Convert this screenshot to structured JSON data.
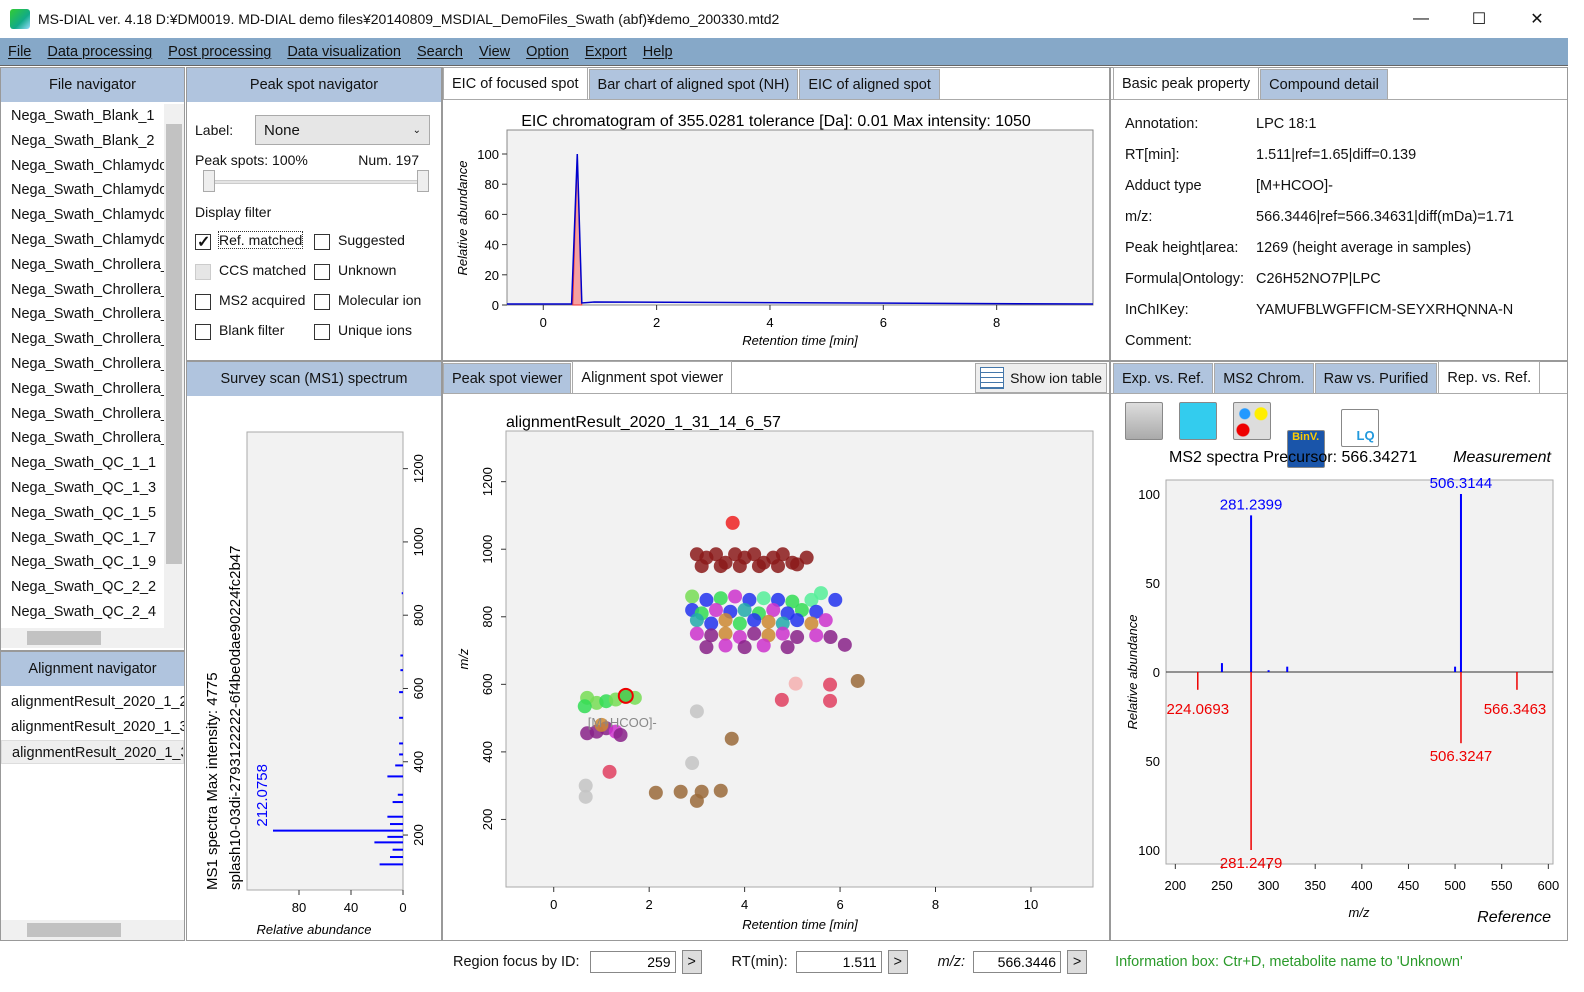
{
  "window": {
    "title": "MS-DIAL ver. 4.18 D:¥DM0019. MD-DIAL demo files¥20140809_MSDIAL_DemoFiles_Swath (abf)¥demo_200330.mtd2",
    "minimize": "—",
    "maximize": "☐",
    "close": "✕"
  },
  "menu": [
    "File",
    "Data processing",
    "Post processing",
    "Data visualization",
    "Search",
    "View",
    "Option",
    "Export",
    "Help"
  ],
  "file_nav": {
    "title": "File navigator",
    "files": [
      "Nega_Swath_Blank_1",
      "Nega_Swath_Blank_2",
      "Nega_Swath_Chlamydo",
      "Nega_Swath_Chlamydo",
      "Nega_Swath_Chlamydo",
      "Nega_Swath_Chlamydo",
      "Nega_Swath_Chrollera_",
      "Nega_Swath_Chrollera_",
      "Nega_Swath_Chrollera_",
      "Nega_Swath_Chrollera_",
      "Nega_Swath_Chrollera_",
      "Nega_Swath_Chrollera_",
      "Nega_Swath_Chrollera_",
      "Nega_Swath_Chrollera_",
      "Nega_Swath_QC_1_1",
      "Nega_Swath_QC_1_3",
      "Nega_Swath_QC_1_5",
      "Nega_Swath_QC_1_7",
      "Nega_Swath_QC_1_9",
      "Nega_Swath_QC_2_2",
      "Nega_Swath_QC_2_4"
    ]
  },
  "align_nav": {
    "title": "Alignment navigator",
    "items": [
      "alignmentResult_2020_1_2",
      "alignmentResult_2020_1_3",
      "alignmentResult_2020_1_3"
    ]
  },
  "peak_nav": {
    "title": "Peak spot navigator",
    "label_caption": "Label:",
    "label_value": "None",
    "peak_spots": "Peak spots: 100%",
    "num": "Num. 197",
    "display_filter": "Display filter",
    "filters": [
      {
        "label": "Ref. matched",
        "checked": true
      },
      {
        "label": "Suggested",
        "checked": false
      },
      {
        "label": "CCS matched",
        "checked": false,
        "disabled": true
      },
      {
        "label": "Unknown",
        "checked": false
      },
      {
        "label": "MS2 acquired",
        "checked": false
      },
      {
        "label": "Molecular ion",
        "checked": false
      },
      {
        "label": "Blank filter",
        "checked": false
      },
      {
        "label": "Unique ions",
        "checked": false
      }
    ]
  },
  "ms1": {
    "title": "Survey scan (MS1) spectrum",
    "line1": "MS1 spectra Max intensity: 4775",
    "line2": "splash10-03di-2793122222-6f4be0dae90224fc2b47",
    "xlabel": "Relative abundance",
    "xticks": [
      80,
      40,
      0
    ],
    "yticks": [
      200,
      400,
      600,
      800,
      1000,
      1200
    ],
    "peak_label": "212.0758",
    "peaks": [
      [
        120,
        18
      ],
      [
        140,
        10
      ],
      [
        160,
        8
      ],
      [
        180,
        22
      ],
      [
        195,
        12
      ],
      [
        212.0758,
        100
      ],
      [
        230,
        10
      ],
      [
        250,
        12
      ],
      [
        290,
        8
      ],
      [
        310,
        4
      ],
      [
        360,
        12
      ],
      [
        390,
        6
      ],
      [
        420,
        3
      ],
      [
        450,
        3
      ],
      [
        520,
        3
      ],
      [
        590,
        3
      ],
      [
        650,
        2
      ],
      [
        690,
        2
      ],
      [
        860,
        1
      ]
    ]
  },
  "eic_tabs": [
    "EIC of focused spot",
    "Bar chart of aligned spot (NH)",
    "EIC of aligned spot"
  ],
  "eic": {
    "title": "EIC chromatogram of 355.0281 tolerance [Da]: 0.01  Max intensity: 1050",
    "xlabel": "Retention time [min]",
    "ylabel": "Relative abundance",
    "xticks": [
      0,
      2,
      4,
      6,
      8
    ],
    "yticks": [
      0,
      20,
      40,
      60,
      80,
      100
    ],
    "xlim": [
      -0.64,
      9.7
    ],
    "peak_rt": 0.6
  },
  "viewer_tabs": [
    "Peak spot viewer",
    "Alignment spot viewer"
  ],
  "show_ion_table": "Show ion table",
  "chart_data": {
    "type": "scatter",
    "title": "alignmentResult_2020_1_31_14_6_57",
    "xlabel": "Retention time [min]",
    "ylabel": "m/z",
    "xlim": [
      -1,
      11.3
    ],
    "ylim": [
      0,
      1350
    ],
    "xticks": [
      0,
      2,
      4,
      6,
      8,
      10
    ],
    "yticks": [
      200,
      400,
      600,
      800,
      1000,
      1200
    ],
    "annotation": "[M+HCOO]-",
    "focused": [
      1.51,
      566
    ],
    "palette": [
      "#8b1a1a",
      "#2233ee",
      "#33dd55",
      "#cc33cc",
      "#22aaaa",
      "#cc8833",
      "#882288",
      "#9a6a3a",
      "#c4c4c4",
      "#e04060",
      "#77dd55",
      "#55ee99",
      "#f4b0b0",
      "#ee2222"
    ],
    "points": [
      [
        3.75,
        1078,
        13
      ],
      [
        3.0,
        985,
        0
      ],
      [
        3.2,
        975,
        0
      ],
      [
        3.4,
        985,
        0
      ],
      [
        3.6,
        960,
        0
      ],
      [
        3.8,
        985,
        0
      ],
      [
        4.0,
        975,
        0
      ],
      [
        4.2,
        985,
        0
      ],
      [
        4.4,
        960,
        0
      ],
      [
        4.6,
        975,
        0
      ],
      [
        4.8,
        985,
        0
      ],
      [
        5.0,
        960,
        0
      ],
      [
        5.3,
        975,
        0
      ],
      [
        3.1,
        950,
        0
      ],
      [
        3.5,
        950,
        0
      ],
      [
        3.9,
        950,
        0
      ],
      [
        4.3,
        950,
        0
      ],
      [
        4.7,
        950,
        0
      ],
      [
        5.1,
        955,
        0
      ],
      [
        2.9,
        860,
        10
      ],
      [
        3.2,
        850,
        1
      ],
      [
        3.5,
        855,
        2
      ],
      [
        3.8,
        860,
        3
      ],
      [
        4.1,
        850,
        1
      ],
      [
        4.4,
        855,
        11
      ],
      [
        4.7,
        850,
        1
      ],
      [
        5.0,
        845,
        2
      ],
      [
        5.4,
        850,
        11
      ],
      [
        5.6,
        870,
        11
      ],
      [
        5.9,
        850,
        1
      ],
      [
        2.9,
        820,
        1
      ],
      [
        3.1,
        810,
        2
      ],
      [
        3.4,
        820,
        3
      ],
      [
        3.7,
        815,
        1
      ],
      [
        4.0,
        820,
        4
      ],
      [
        4.3,
        810,
        2
      ],
      [
        4.6,
        820,
        3
      ],
      [
        4.9,
        810,
        1
      ],
      [
        5.2,
        820,
        2
      ],
      [
        5.5,
        815,
        1
      ],
      [
        3.0,
        790,
        4
      ],
      [
        3.3,
        780,
        1
      ],
      [
        3.6,
        790,
        5
      ],
      [
        3.9,
        780,
        2
      ],
      [
        4.2,
        790,
        1
      ],
      [
        4.5,
        785,
        5
      ],
      [
        4.8,
        780,
        4
      ],
      [
        5.1,
        790,
        1
      ],
      [
        5.4,
        780,
        5
      ],
      [
        5.7,
        790,
        3
      ],
      [
        3.0,
        750,
        3
      ],
      [
        3.3,
        745,
        6
      ],
      [
        3.6,
        750,
        5
      ],
      [
        3.9,
        740,
        3
      ],
      [
        4.2,
        750,
        6
      ],
      [
        4.5,
        745,
        5
      ],
      [
        4.8,
        750,
        3
      ],
      [
        5.1,
        740,
        6
      ],
      [
        5.5,
        745,
        3
      ],
      [
        5.8,
        740,
        6
      ],
      [
        3.2,
        710,
        6
      ],
      [
        3.6,
        715,
        3
      ],
      [
        4.0,
        710,
        6
      ],
      [
        4.4,
        715,
        3
      ],
      [
        4.9,
        710,
        6
      ],
      [
        6.1,
        717,
        6
      ],
      [
        0.7,
        560,
        10
      ],
      [
        0.9,
        545,
        10
      ],
      [
        1.1,
        550,
        2
      ],
      [
        1.3,
        555,
        10
      ],
      [
        1.7,
        560,
        10
      ],
      [
        0.65,
        535,
        2
      ],
      [
        0.7,
        455,
        6
      ],
      [
        0.9,
        460,
        6
      ],
      [
        1.1,
        470,
        6
      ],
      [
        1.3,
        460,
        3
      ],
      [
        1.4,
        450,
        6
      ],
      [
        1.0,
        480,
        5
      ],
      [
        3.0,
        520,
        8
      ],
      [
        2.9,
        367,
        8
      ],
      [
        0.67,
        300,
        8
      ],
      [
        0.67,
        267,
        8
      ],
      [
        2.14,
        279,
        7
      ],
      [
        2.66,
        282,
        7
      ],
      [
        3.1,
        282,
        7
      ],
      [
        3.0,
        255,
        7
      ],
      [
        3.5,
        285,
        7
      ],
      [
        3.73,
        439,
        7
      ],
      [
        6.37,
        610,
        7
      ],
      [
        4.78,
        554,
        9
      ],
      [
        5.79,
        551,
        9
      ],
      [
        5.79,
        599,
        9
      ],
      [
        5.07,
        602,
        12
      ],
      [
        1.17,
        341,
        9
      ]
    ]
  },
  "right_tabs": [
    "Basic peak property",
    "Compound detail"
  ],
  "props": [
    [
      "Annotation:",
      "LPC 18:1"
    ],
    [
      "RT[min]:",
      "1.511|ref=1.65|diff=0.139"
    ],
    [
      "Adduct type",
      "[M+HCOO]-"
    ],
    [
      "m/z:",
      "566.3446|ref=566.34631|diff(mDa)=1.71"
    ],
    [
      "Peak height|area:",
      "1269 (height average in samples)"
    ],
    [
      "Formula|Ontology:",
      "C26H52NO7P|LPC"
    ],
    [
      "InChIKey:",
      "YAMUFBLWGFFICM-SEYXRHQNNA-N"
    ],
    [
      "Comment:",
      ""
    ]
  ],
  "ms2_tabs": [
    "Exp. vs. Ref.",
    "MS2 Chrom.",
    "Raw vs. Purified",
    "Rep. vs. Ref."
  ],
  "ms2_tools": {
    "binv": "BinV.",
    "lq": "LQ"
  },
  "ms2": {
    "title": "MS2 spectra Precursor: 566.34271",
    "top_label": "Measurement",
    "bottom_label": "Reference",
    "xlabel": "m/z",
    "ylabel": "Relative abundance",
    "xticks": [
      200,
      250,
      300,
      350,
      400,
      450,
      500,
      550,
      600
    ],
    "yticks_top": [
      100,
      50,
      0
    ],
    "yticks_bottom": [
      50,
      100
    ],
    "measurement": [
      [
        250,
        5,
        ""
      ],
      [
        281.2399,
        88,
        "281.2399"
      ],
      [
        300,
        1,
        ""
      ],
      [
        320,
        3,
        ""
      ],
      [
        500,
        3,
        ""
      ],
      [
        506.3144,
        100,
        "506.3144"
      ]
    ],
    "reference": [
      [
        224.0693,
        10,
        "224.0693"
      ],
      [
        281.2479,
        100,
        "281.2479"
      ],
      [
        506.3247,
        40,
        "506.3247"
      ],
      [
        566.3463,
        10,
        "566.3463"
      ]
    ]
  },
  "status": {
    "region_label": "Region focus by ID:",
    "region_value": "259",
    "rt_label": "RT(min):",
    "rt_value": "1.511",
    "mz_label": "m/z:",
    "mz_value": "566.3446",
    "go": ">",
    "info": "Information box: Ctr+D, metabolite name to 'Unknown'"
  }
}
